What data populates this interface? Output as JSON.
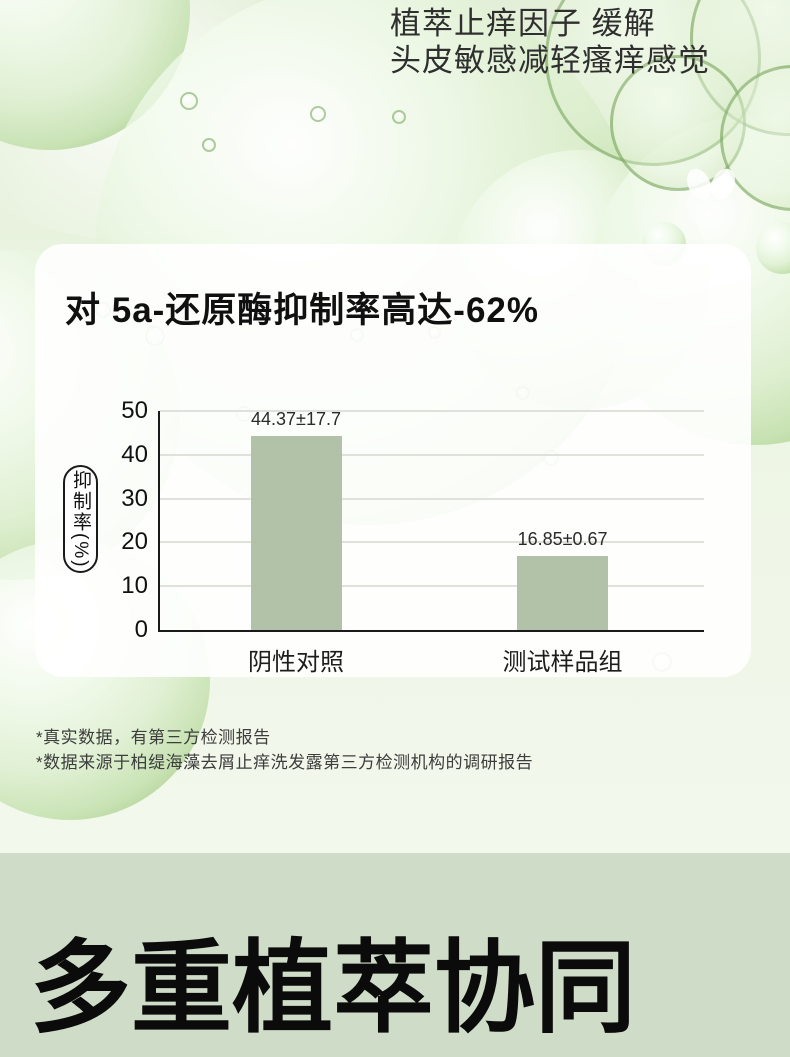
{
  "header": {
    "line1": "植萃止痒因子 缓解",
    "line2": "头皮敏感减轻瘙痒感觉"
  },
  "card": {
    "title": "对 5a-还原酶抑制率高达-62%"
  },
  "chart_data": {
    "type": "bar",
    "title": "对 5a-还原酶抑制率高达-62%",
    "ylabel": "抑制率(%)",
    "xlabel": "",
    "categories": [
      "阴性对照",
      "测试样品组"
    ],
    "values": [
      44.37,
      16.85
    ],
    "value_labels": [
      "44.37±17.7",
      "16.85±0.67"
    ],
    "yticks": [
      0,
      10,
      20,
      30,
      40,
      50
    ],
    "ylim": [
      0,
      50
    ],
    "grid": true,
    "legend": "none",
    "bar_color": "#b1c2a8"
  },
  "footnotes": [
    "*真实数据，有第三方检测报告",
    "*数据来源于柏缇海藻去屑止痒洗发露第三方检测机构的调研报告"
  ],
  "section2": {
    "title": "多重植萃协同"
  },
  "colors": {
    "bar": "#b1c2a8",
    "section2_bg": "#cfdcc8",
    "card_bg": "#ffffff",
    "bubble_green": "#9cc67d",
    "text_dark": "#101010"
  }
}
